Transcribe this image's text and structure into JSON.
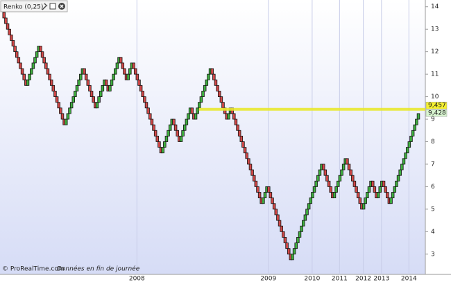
{
  "chart_data": {
    "type": "renko",
    "title": "Renko (0,25)",
    "box_size": 0.25,
    "values": [
      13.5,
      13.25,
      13,
      12.75,
      12.5,
      12.25,
      12,
      11.75,
      11.5,
      11.25,
      11,
      10.75,
      10.5,
      10.75,
      11,
      11.25,
      11.5,
      11.75,
      12,
      12.25,
      12,
      11.75,
      11.5,
      11.25,
      11,
      10.75,
      10.5,
      10.25,
      10,
      9.75,
      9.5,
      9.25,
      9,
      8.75,
      9,
      9.25,
      9.5,
      9.75,
      10,
      10.25,
      10.5,
      10.75,
      11,
      11.25,
      11,
      10.75,
      10.5,
      10.25,
      10,
      9.75,
      9.5,
      9.75,
      10,
      10.25,
      10.5,
      10.75,
      10.5,
      10.25,
      10.5,
      10.75,
      11,
      11.25,
      11.5,
      11.75,
      11.5,
      11.25,
      11,
      10.75,
      11,
      11.25,
      11.5,
      11.25,
      11,
      10.75,
      10.5,
      10.25,
      10,
      9.75,
      9.5,
      9.25,
      9,
      8.75,
      8.5,
      8.25,
      8,
      7.75,
      7.5,
      7.75,
      8,
      8.25,
      8.5,
      8.75,
      9,
      8.75,
      8.5,
      8.25,
      8,
      8.25,
      8.5,
      8.75,
      9,
      9.25,
      9.5,
      9.25,
      9,
      9.25,
      9.5,
      9.75,
      10,
      10.25,
      10.5,
      10.75,
      11,
      11.25,
      11,
      10.75,
      10.5,
      10.25,
      10,
      9.75,
      9.5,
      9.25,
      9,
      9.25,
      9.5,
      9.25,
      9,
      8.75,
      8.5,
      8.25,
      8,
      7.75,
      7.5,
      7.25,
      7,
      6.75,
      6.5,
      6.25,
      6,
      5.75,
      5.5,
      5.25,
      5.5,
      5.75,
      6,
      5.75,
      5.5,
      5.25,
      5,
      4.75,
      4.5,
      4.25,
      4,
      3.75,
      3.5,
      3.25,
      3,
      2.75,
      3,
      3.25,
      3.5,
      3.75,
      4,
      4.25,
      4.5,
      4.75,
      5,
      5.25,
      5.5,
      5.75,
      6,
      6.25,
      6.5,
      6.75,
      7,
      6.75,
      6.5,
      6.25,
      6,
      5.75,
      5.5,
      5.75,
      6,
      6.25,
      6.5,
      6.75,
      7,
      7.25,
      7,
      6.75,
      6.5,
      6.25,
      6,
      5.75,
      5.5,
      5.25,
      5,
      5.25,
      5.5,
      5.75,
      6,
      6.25,
      6,
      5.75,
      5.5,
      5.75,
      6,
      6.25,
      6,
      5.75,
      5.5,
      5.25,
      5.5,
      5.75,
      6,
      6.25,
      6.5,
      6.75,
      7,
      7.25,
      7.5,
      7.75,
      8,
      8.25,
      8.5,
      8.75,
      9,
      9.25
    ],
    "up_color": "#3fae3f",
    "down_color": "#d04848",
    "ylim": [
      2.1,
      14.3
    ],
    "yticks": [
      3,
      4,
      5,
      6,
      7,
      8,
      9,
      10,
      11,
      12,
      13,
      14
    ],
    "xlim": [
      -2,
      231
    ],
    "xticks": [
      {
        "value": 73,
        "label": "2008"
      },
      {
        "value": 145,
        "label": "2009"
      },
      {
        "value": 169,
        "label": "2010"
      },
      {
        "value": 184,
        "label": "2011"
      },
      {
        "value": 197,
        "label": "2012"
      },
      {
        "value": 207,
        "label": "2013"
      },
      {
        "value": 222,
        "label": "2014"
      }
    ],
    "hline": {
      "value": 9.44,
      "start_index": 107,
      "color": "#e8e830"
    },
    "price_labels": [
      {
        "value": 9.457,
        "label": "9,457",
        "color": "#f5f030"
      },
      {
        "value": 9.428,
        "label": "9,428",
        "color": "#d8f5d0"
      }
    ],
    "footer": {
      "source": "© ProRealTime.com",
      "note": "Données en fin de journée"
    }
  }
}
